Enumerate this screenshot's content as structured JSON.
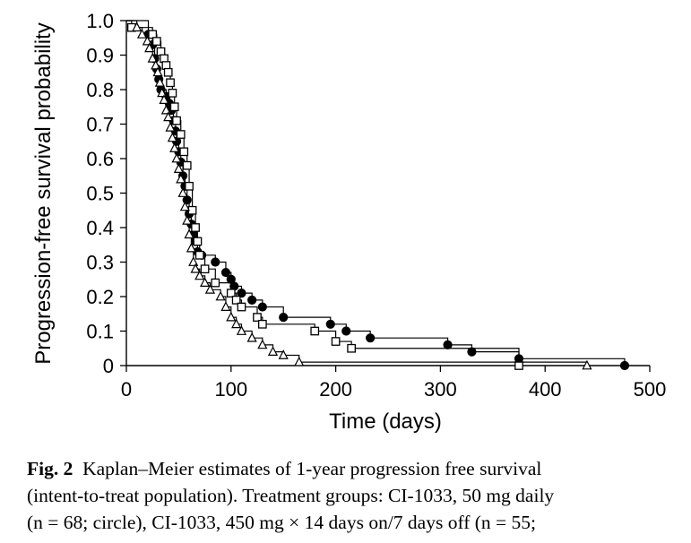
{
  "chart_data": {
    "type": "line",
    "subtype": "kaplan-meier step",
    "xlabel": "Time (days)",
    "ylabel": "Progression-free survival probability",
    "xlim": [
      0,
      500
    ],
    "ylim": [
      0,
      1.0
    ],
    "x_ticks": [
      "0",
      "100",
      "200",
      "300",
      "400",
      "500"
    ],
    "y_ticks": [
      "0",
      "0.1",
      "0.2",
      "0.3",
      "0.4",
      "0.5",
      "0.6",
      "0.7",
      "0.8",
      "0.9",
      "1.0"
    ],
    "grid": false,
    "series": [
      {
        "marker": "circle",
        "x": [
          0,
          21,
          25,
          27,
          29,
          31,
          33,
          38,
          41,
          43,
          45,
          47,
          48,
          50,
          52,
          54,
          56,
          58,
          60,
          62,
          64,
          66,
          68,
          72,
          85,
          95,
          100,
          103,
          110,
          120,
          130,
          150,
          195,
          210,
          233,
          307,
          330,
          375,
          476
        ],
        "y": [
          1.0,
          0.96,
          0.93,
          0.89,
          0.86,
          0.83,
          0.8,
          0.78,
          0.76,
          0.74,
          0.71,
          0.68,
          0.65,
          0.62,
          0.59,
          0.55,
          0.52,
          0.48,
          0.44,
          0.41,
          0.38,
          0.36,
          0.33,
          0.32,
          0.3,
          0.27,
          0.25,
          0.23,
          0.21,
          0.19,
          0.17,
          0.14,
          0.12,
          0.1,
          0.08,
          0.06,
          0.04,
          0.02,
          0.0
        ]
      },
      {
        "marker": "square",
        "x": [
          0,
          5,
          25,
          29,
          33,
          36,
          38,
          40,
          42,
          44,
          46,
          48,
          52,
          55,
          58,
          60,
          63,
          66,
          68,
          70,
          75,
          85,
          100,
          105,
          110,
          125,
          130,
          180,
          200,
          215,
          375
        ],
        "y": [
          1.0,
          0.98,
          0.96,
          0.94,
          0.91,
          0.89,
          0.87,
          0.85,
          0.82,
          0.79,
          0.75,
          0.71,
          0.67,
          0.62,
          0.58,
          0.52,
          0.45,
          0.4,
          0.36,
          0.32,
          0.28,
          0.24,
          0.21,
          0.19,
          0.17,
          0.14,
          0.12,
          0.1,
          0.07,
          0.05,
          0.0
        ]
      },
      {
        "marker": "triangle",
        "x": [
          0,
          10,
          15,
          20,
          22,
          25,
          28,
          30,
          32,
          34,
          36,
          38,
          40,
          42,
          44,
          46,
          48,
          50,
          52,
          54,
          56,
          58,
          60,
          62,
          64,
          66,
          70,
          75,
          80,
          90,
          95,
          100,
          105,
          110,
          120,
          130,
          140,
          150,
          165,
          440
        ],
        "y": [
          1.0,
          0.98,
          0.96,
          0.94,
          0.92,
          0.89,
          0.87,
          0.85,
          0.82,
          0.79,
          0.77,
          0.74,
          0.72,
          0.69,
          0.66,
          0.63,
          0.6,
          0.57,
          0.54,
          0.5,
          0.46,
          0.42,
          0.38,
          0.34,
          0.3,
          0.28,
          0.26,
          0.24,
          0.22,
          0.2,
          0.17,
          0.14,
          0.12,
          0.1,
          0.08,
          0.06,
          0.04,
          0.03,
          0.01,
          0.0
        ]
      }
    ]
  },
  "caption": {
    "label": "Fig. 2",
    "line1": "Kaplan–Meier estimates of 1-year progression free survival",
    "line2": "(intent-to-treat population). Treatment groups: CI-1033, 50 mg daily",
    "line3": "(n = 68; circle), CI-1033, 450 mg × 14 days on/7 days off (n = 55;"
  }
}
